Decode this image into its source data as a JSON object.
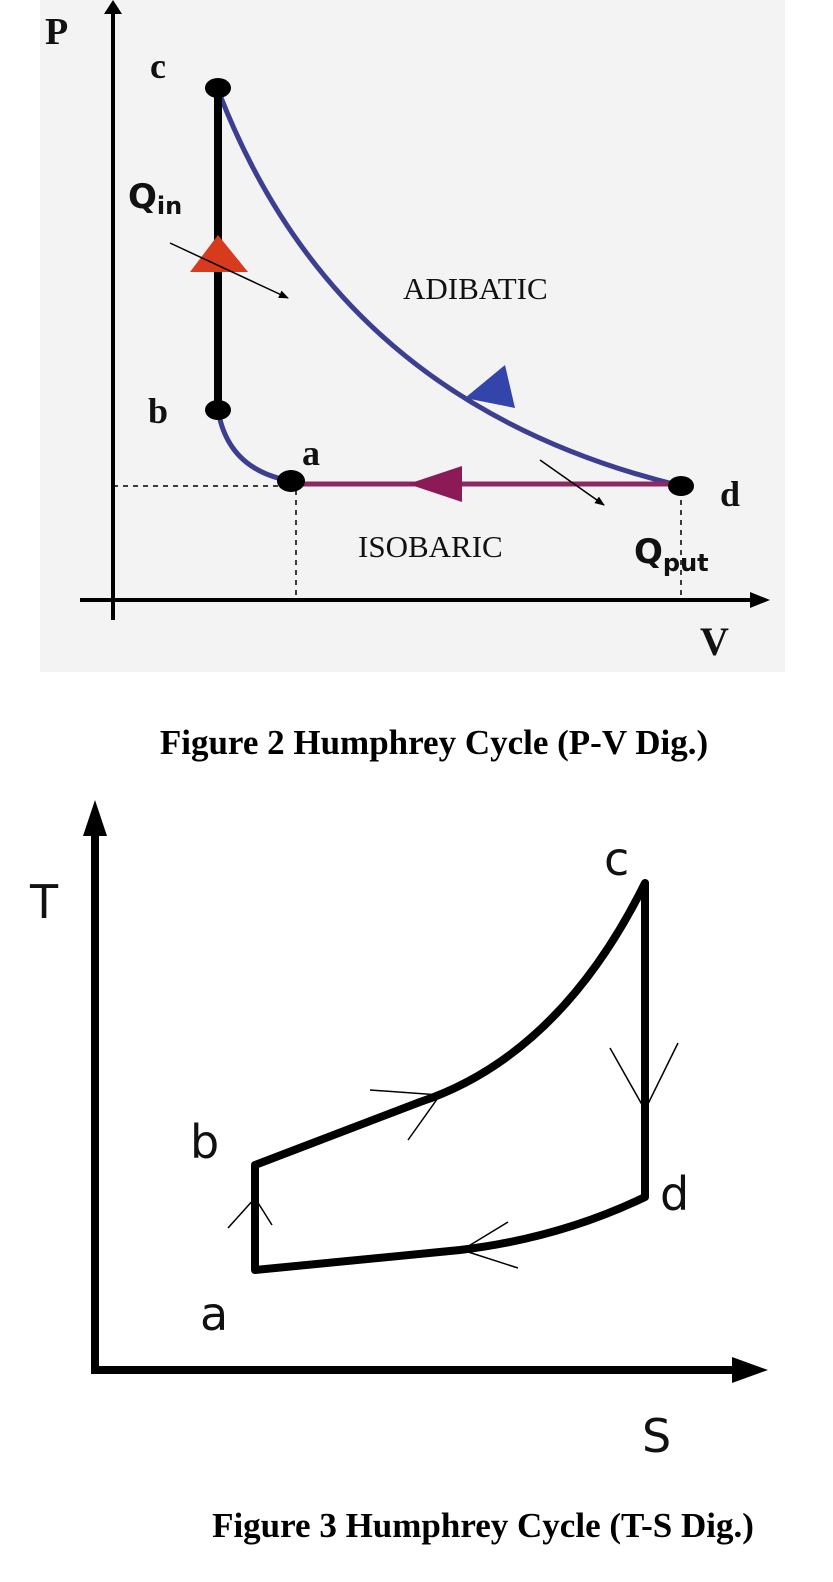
{
  "figure2": {
    "axes": {
      "y": "P",
      "x": "V"
    },
    "points": {
      "c": "c",
      "b": "b",
      "a": "a",
      "d": "d"
    },
    "heat_in": {
      "main": "Q",
      "sub": "in"
    },
    "heat_out": {
      "main": "Q",
      "sub": "put"
    },
    "process_labels": {
      "adiabatic": "ADIBATIC",
      "isobaric": "ISOBARIC"
    },
    "caption": "Figure 2 Humphrey Cycle (P-V Dig.)"
  },
  "figure3": {
    "axes": {
      "y": "T",
      "x": "S"
    },
    "points": {
      "c": "c",
      "b": "b",
      "d": "d",
      "a": "a"
    },
    "caption": "Figure 3 Humphrey Cycle (T-S Dig.)"
  }
}
